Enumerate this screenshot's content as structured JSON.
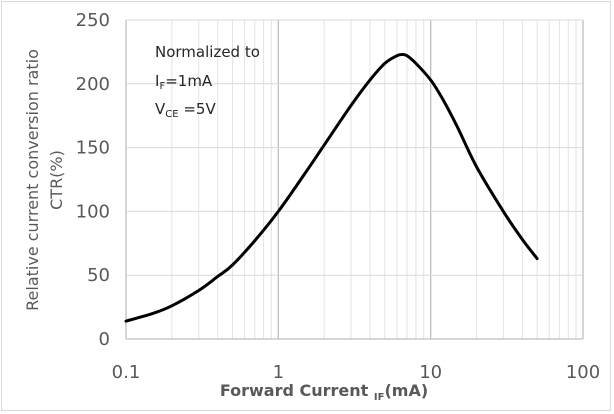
{
  "chart_data": {
    "type": "line",
    "x_scale": "log",
    "xlim": [
      0.1,
      100
    ],
    "ylim": [
      0,
      250
    ],
    "x_ticks": [
      "0.1",
      "1",
      "10",
      "100"
    ],
    "y_ticks": [
      "0",
      "50",
      "100",
      "150",
      "200",
      "250"
    ],
    "ylabel_line1": "Relative current conversion ratio",
    "ylabel_line2": "CTR(%)",
    "xlabel_main": "Forward Current ",
    "xlabel_sub": "IF",
    "xlabel_unit": "(mA)",
    "grid": true,
    "annotation": {
      "line1": "Normalized to",
      "line2_main": "I",
      "line2_sub": "F",
      "line2_rest": "=1mA",
      "line3_main": "V",
      "line3_sub": "CE",
      "line3_rest": " =5V"
    },
    "series": [
      {
        "color": "#000000",
        "x": [
          0.1,
          0.15,
          0.2,
          0.3,
          0.4,
          0.5,
          0.7,
          1,
          1.5,
          2,
          3,
          4,
          5,
          6,
          6.5,
          7,
          8,
          10,
          12,
          15,
          20,
          30,
          40,
          50
        ],
        "y": [
          14,
          20,
          26,
          38,
          49,
          58,
          77,
          100,
          130,
          152,
          183,
          203,
          216,
          222,
          223,
          222,
          216,
          203,
          188,
          166,
          135,
          100,
          78,
          63
        ]
      }
    ]
  }
}
